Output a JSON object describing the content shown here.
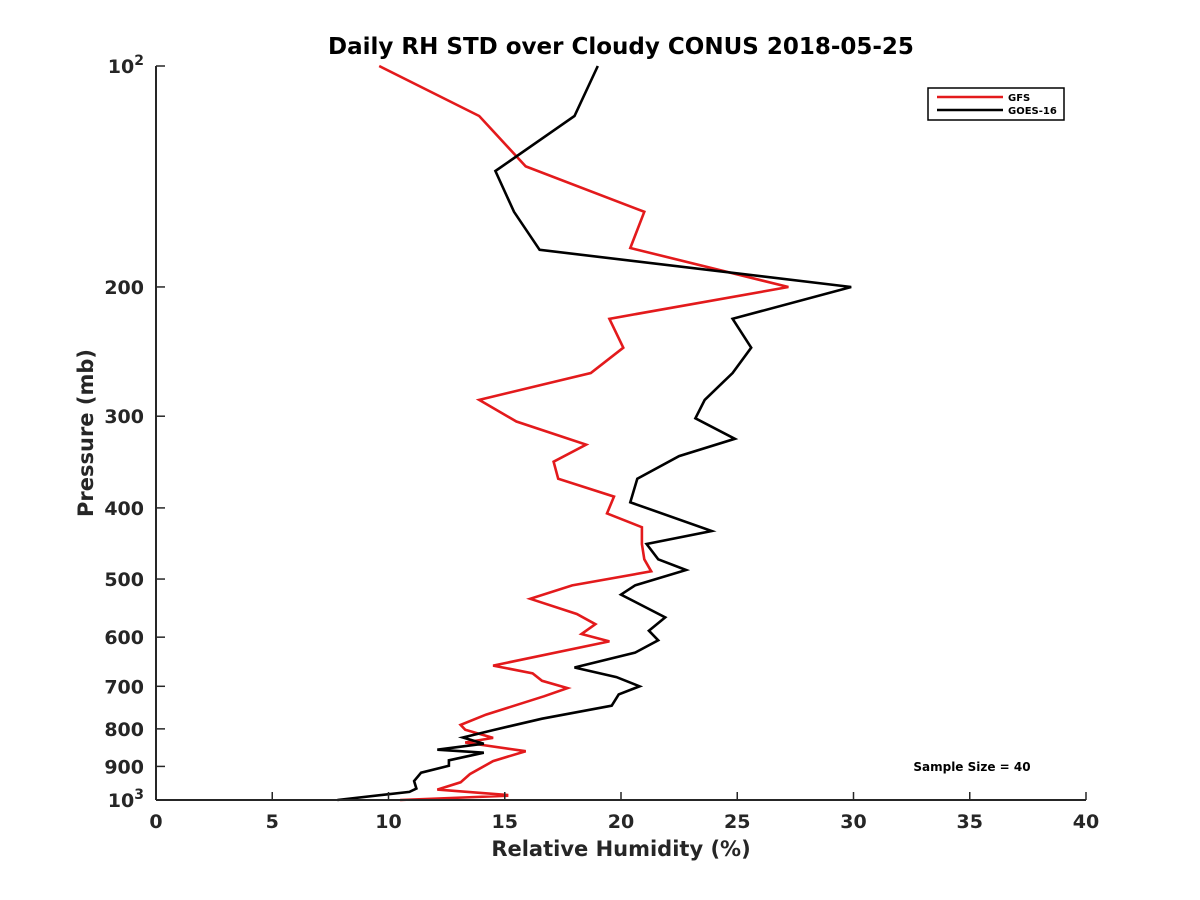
{
  "chart_data": {
    "type": "line",
    "title": "Daily RH STD over Cloudy CONUS 2018-05-25",
    "xlabel": "Relative Humidity (%)",
    "ylabel": "Pressure (mb)",
    "xlim": [
      0,
      40
    ],
    "ylim": [
      100,
      1000
    ],
    "y_scale": "log",
    "y_reversed": true,
    "grid": false,
    "legend_position": "top-right",
    "x_ticks": [
      0,
      5,
      10,
      15,
      20,
      25,
      30,
      35,
      40
    ],
    "x_tick_labels": [
      "0",
      "5",
      "10",
      "15",
      "20",
      "25",
      "30",
      "35",
      "40"
    ],
    "y_ticks": [
      100,
      200,
      300,
      400,
      500,
      600,
      700,
      800,
      900,
      1000
    ],
    "y_tick_labels": [
      {
        "base": "10",
        "exp": "2"
      },
      {
        "base": "200",
        "exp": ""
      },
      {
        "base": "300",
        "exp": ""
      },
      {
        "base": "400",
        "exp": ""
      },
      {
        "base": "500",
        "exp": ""
      },
      {
        "base": "600",
        "exp": ""
      },
      {
        "base": "700",
        "exp": ""
      },
      {
        "base": "800",
        "exp": ""
      },
      {
        "base": "900",
        "exp": ""
      },
      {
        "base": "10",
        "exp": "3"
      }
    ],
    "annotation": "Sample Size = 40",
    "series": [
      {
        "name": "GFS",
        "color": "#e31a1c",
        "points": [
          [
            9.6,
            100
          ],
          [
            13.9,
            117
          ],
          [
            15.9,
            137
          ],
          [
            21.0,
            158
          ],
          [
            20.4,
            177
          ],
          [
            27.2,
            200
          ],
          [
            19.5,
            221
          ],
          [
            20.1,
            242
          ],
          [
            18.7,
            262
          ],
          [
            13.9,
            285
          ],
          [
            15.5,
            305
          ],
          [
            18.5,
            328
          ],
          [
            17.1,
            346
          ],
          [
            17.3,
            365
          ],
          [
            19.7,
            386
          ],
          [
            19.4,
            407
          ],
          [
            20.9,
            425
          ],
          [
            20.9,
            448
          ],
          [
            21.0,
            470
          ],
          [
            21.3,
            488
          ],
          [
            17.9,
            510
          ],
          [
            16.1,
            532
          ],
          [
            18.1,
            558
          ],
          [
            18.9,
            576
          ],
          [
            18.3,
            594
          ],
          [
            19.5,
            608
          ],
          [
            14.5,
            656
          ],
          [
            16.2,
            672
          ],
          [
            16.6,
            688
          ],
          [
            17.7,
            704
          ],
          [
            16.7,
            722
          ],
          [
            14.2,
            765
          ],
          [
            13.1,
            790
          ],
          [
            13.3,
            802
          ],
          [
            14.5,
            823
          ],
          [
            13.3,
            835
          ],
          [
            15.9,
            858
          ],
          [
            14.5,
            885
          ],
          [
            13.5,
            922
          ],
          [
            13.1,
            946
          ],
          [
            12.1,
            968
          ],
          [
            15.1,
            984
          ],
          [
            15.1,
            987
          ],
          [
            10.5,
            1000
          ]
        ]
      },
      {
        "name": "GOES-16",
        "color": "#000000",
        "points": [
          [
            19.0,
            100
          ],
          [
            18.0,
            117
          ],
          [
            14.6,
            139
          ],
          [
            15.4,
            158
          ],
          [
            16.5,
            178
          ],
          [
            29.9,
            200
          ],
          [
            24.8,
            221
          ],
          [
            25.6,
            242
          ],
          [
            24.8,
            262
          ],
          [
            23.6,
            285
          ],
          [
            23.2,
            302
          ],
          [
            24.9,
            322
          ],
          [
            22.5,
            340
          ],
          [
            20.7,
            365
          ],
          [
            20.4,
            393
          ],
          [
            23.9,
            430
          ],
          [
            21.1,
            448
          ],
          [
            21.6,
            470
          ],
          [
            22.8,
            486
          ],
          [
            20.6,
            510
          ],
          [
            20.0,
            525
          ],
          [
            21.9,
            564
          ],
          [
            21.2,
            588
          ],
          [
            21.6,
            606
          ],
          [
            20.6,
            630
          ],
          [
            18.0,
            660
          ],
          [
            19.8,
            680
          ],
          [
            20.8,
            700
          ],
          [
            19.9,
            718
          ],
          [
            19.6,
            744
          ],
          [
            16.6,
            775
          ],
          [
            14.5,
            803
          ],
          [
            13.2,
            822
          ],
          [
            14.1,
            838
          ],
          [
            12.1,
            854
          ],
          [
            14.1,
            862
          ],
          [
            12.6,
            883
          ],
          [
            12.6,
            898
          ],
          [
            11.4,
            918
          ],
          [
            11.1,
            942
          ],
          [
            11.2,
            965
          ],
          [
            10.9,
            975
          ],
          [
            7.8,
            1000
          ]
        ]
      }
    ]
  }
}
